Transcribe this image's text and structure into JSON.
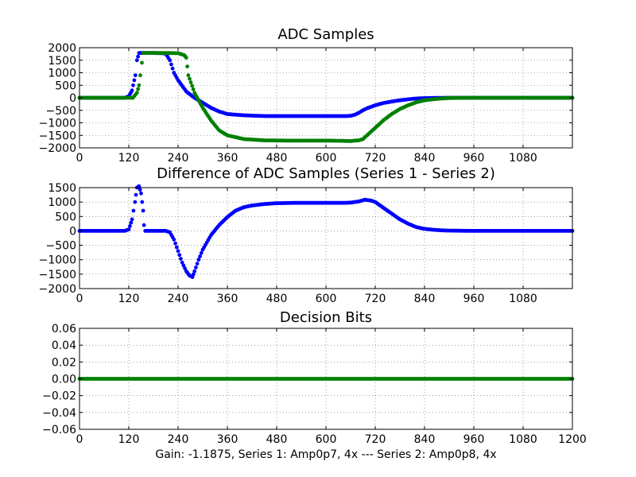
{
  "figure": {
    "xlabel": "Gain: -1.1875, Series 1: Amp0p7, 4x --- Series 2: Amp0p8, 4x"
  },
  "chart_data": [
    {
      "type": "scatter",
      "title": "ADC Samples",
      "xlabel": "",
      "ylabel": "",
      "xlim": [
        0,
        1200
      ],
      "ylim": [
        -2000,
        2000
      ],
      "xticks": [
        0,
        120,
        240,
        360,
        480,
        600,
        720,
        840,
        960,
        1080
      ],
      "yticks": [
        -2000,
        -1500,
        -1000,
        -500,
        0,
        500,
        1000,
        1500,
        2000
      ],
      "grid": true,
      "series": [
        {
          "color": "#0000ff",
          "x": [
            0,
            110,
            120,
            128,
            136,
            140,
            145,
            180,
            200,
            210,
            220,
            230,
            240,
            260,
            280,
            300,
            320,
            340,
            360,
            400,
            450,
            500,
            550,
            600,
            650,
            660,
            670,
            680,
            690,
            700,
            720,
            740,
            760,
            780,
            800,
            820,
            840,
            870,
            900,
            950,
            1000,
            1100,
            1200
          ],
          "values": [
            0,
            0,
            60,
            300,
            900,
            1500,
            1790,
            1790,
            1780,
            1760,
            1500,
            1000,
            700,
            250,
            0,
            -200,
            -400,
            -550,
            -650,
            -700,
            -730,
            -730,
            -730,
            -730,
            -730,
            -720,
            -680,
            -600,
            -500,
            -420,
            -300,
            -210,
            -150,
            -100,
            -60,
            -30,
            -15,
            -5,
            0,
            0,
            0,
            0,
            0
          ]
        },
        {
          "color": "#008000",
          "x": [
            0,
            130,
            140,
            145,
            148,
            152,
            155,
            160,
            200,
            240,
            255,
            260,
            265,
            280,
            300,
            320,
            340,
            360,
            400,
            450,
            500,
            550,
            600,
            640,
            660,
            670,
            680,
            690,
            700,
            720,
            740,
            760,
            780,
            800,
            820,
            840,
            860,
            880,
            900,
            950,
            1200
          ],
          "values": [
            0,
            0,
            200,
            500,
            900,
            1400,
            1790,
            1790,
            1790,
            1780,
            1700,
            1600,
            900,
            200,
            -400,
            -900,
            -1300,
            -1500,
            -1650,
            -1700,
            -1710,
            -1710,
            -1710,
            -1720,
            -1730,
            -1710,
            -1700,
            -1650,
            -1500,
            -1200,
            -900,
            -650,
            -450,
            -300,
            -180,
            -100,
            -60,
            -30,
            -10,
            0,
            0
          ]
        }
      ]
    },
    {
      "type": "scatter",
      "title": "Difference of ADC Samples (Series 1 - Series 2)",
      "xlabel": "",
      "ylabel": "",
      "xlim": [
        0,
        1200
      ],
      "ylim": [
        -2000,
        1500
      ],
      "xticks": [
        0,
        120,
        240,
        360,
        480,
        600,
        720,
        840,
        960,
        1080
      ],
      "yticks": [
        -2000,
        -1500,
        -1000,
        -500,
        0,
        500,
        1000,
        1500
      ],
      "grid": true,
      "series": [
        {
          "color": "#0000ff",
          "x": [
            0,
            100,
            110,
            120,
            128,
            135,
            140,
            145,
            150,
            155,
            157,
            160,
            200,
            210,
            220,
            230,
            240,
            250,
            260,
            268,
            275,
            280,
            290,
            300,
            310,
            320,
            340,
            360,
            380,
            400,
            420,
            450,
            480,
            520,
            560,
            600,
            640,
            660,
            680,
            695,
            710,
            720,
            740,
            760,
            780,
            800,
            820,
            840,
            860,
            880,
            900,
            950,
            1000,
            1100,
            1200
          ],
          "values": [
            0,
            0,
            0,
            50,
            400,
            1000,
            1500,
            1550,
            1300,
            700,
            200,
            0,
            0,
            0,
            -50,
            -300,
            -700,
            -1100,
            -1400,
            -1550,
            -1600,
            -1400,
            -1000,
            -650,
            -400,
            -150,
            200,
            480,
            700,
            820,
            880,
            930,
            960,
            970,
            970,
            970,
            970,
            980,
            1020,
            1080,
            1050,
            1000,
            800,
            600,
            400,
            250,
            130,
            70,
            40,
            20,
            10,
            0,
            0,
            0,
            0
          ]
        }
      ]
    },
    {
      "type": "scatter",
      "title": "Decision Bits",
      "xlabel": "Gain: -1.1875, Series 1: Amp0p7, 4x --- Series 2: Amp0p8, 4x",
      "ylabel": "",
      "xlim": [
        0,
        1200
      ],
      "ylim": [
        -0.06,
        0.06
      ],
      "xticks": [
        0,
        120,
        240,
        360,
        480,
        600,
        720,
        840,
        960,
        1080,
        1200
      ],
      "yticks": [
        -0.06,
        -0.04,
        -0.02,
        0.0,
        0.02,
        0.04,
        0.06
      ],
      "ytick_labels": [
        "−0.06",
        "−0.04",
        "−0.02",
        "0.00",
        "0.02",
        "0.04",
        "0.06"
      ],
      "grid": true,
      "series": [
        {
          "color": "#008000",
          "x": [
            0,
            1200
          ],
          "values": [
            0,
            0
          ]
        }
      ]
    }
  ]
}
